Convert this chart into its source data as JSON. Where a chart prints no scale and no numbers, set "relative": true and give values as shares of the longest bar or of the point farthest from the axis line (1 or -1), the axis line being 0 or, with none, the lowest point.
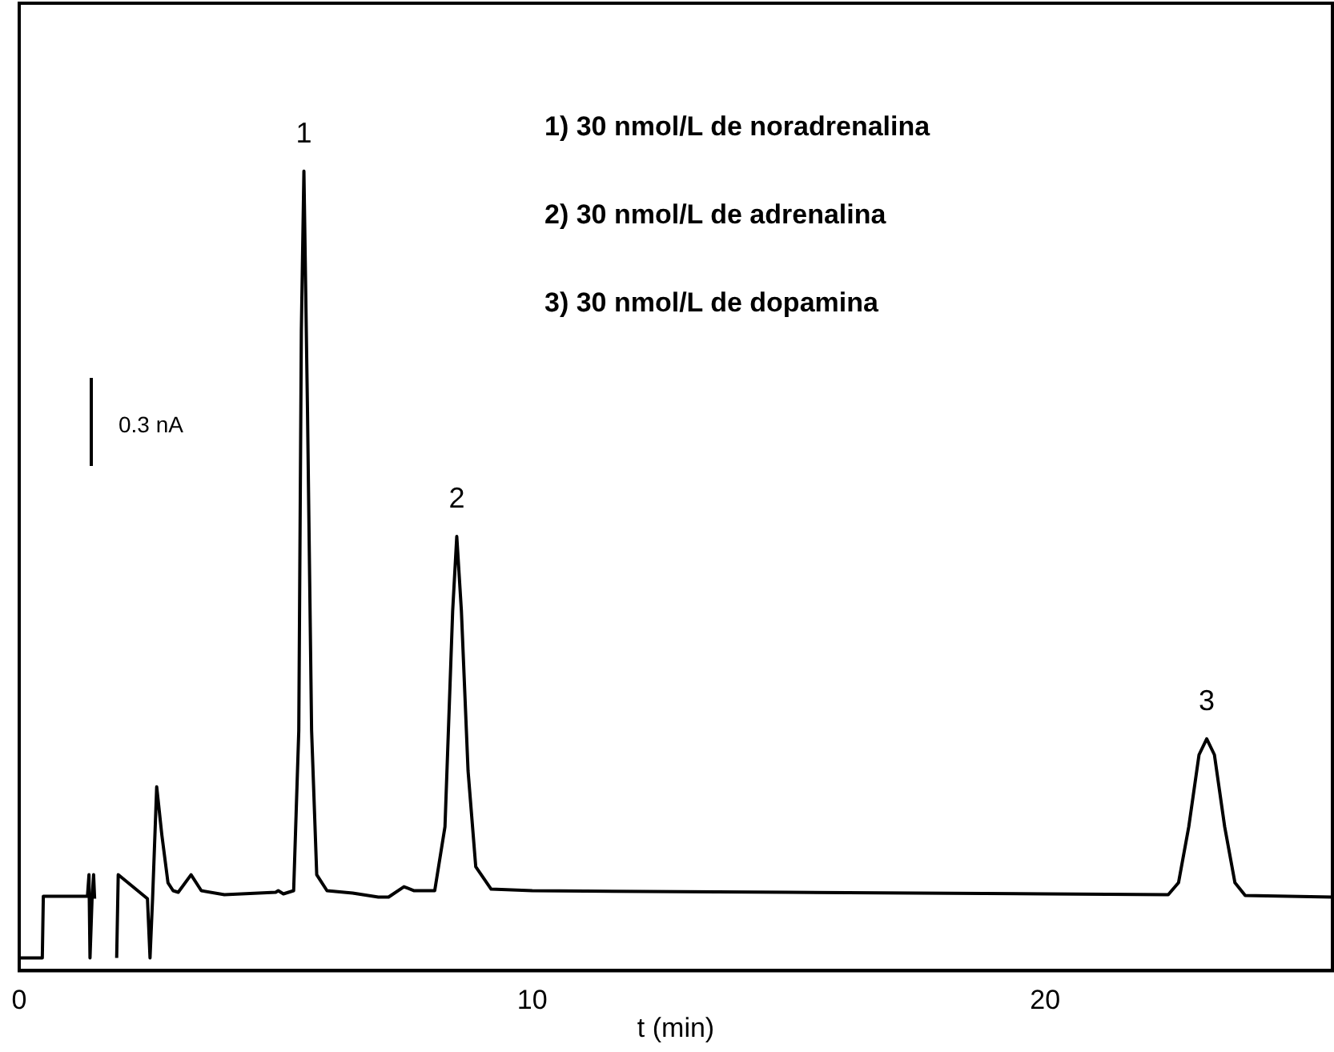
{
  "chart_data": {
    "type": "line",
    "relative": true,
    "xlabel": "t (min)",
    "xlim": [
      0,
      25.6
    ],
    "xticks": [
      0,
      10,
      20
    ],
    "grid": false,
    "legend": false,
    "marker": "none",
    "line_style": "solid",
    "annotations": [
      {
        "text": "1",
        "x": 5.55,
        "y": 1
      },
      {
        "text": "2",
        "x": 8.53,
        "y": 0.543
      },
      {
        "text": "3",
        "x": 23.15,
        "y": 0.29
      },
      "1) 30 nmol/L de noradrenalina",
      "2) 30 nmol/L de adrenalina",
      "3) 30 nmol/L de dopamina",
      "0.3 nA"
    ],
    "series": [
      {
        "color": "#000000",
        "x": [
          0,
          0.45,
          0.47,
          1.33,
          1.36,
          1.38,
          1.42,
          1.45,
          1.47,
          1.6,
          1.9,
          1.93,
          2.5,
          2.55,
          2.6,
          2.68,
          2.78,
          2.9,
          3.0,
          3.1,
          3.35,
          3.55,
          4.0,
          5.0,
          5.05,
          5.15,
          5.35,
          5.45,
          5.5,
          5.55,
          5.62,
          5.7,
          5.8,
          6.0,
          6.5,
          7.0,
          7.2,
          7.5,
          7.7,
          8.1,
          8.3,
          8.45,
          8.53,
          8.62,
          8.75,
          8.9,
          9.2,
          10,
          15,
          20,
          22.4,
          22.6,
          22.8,
          23.0,
          23.15,
          23.3,
          23.5,
          23.7,
          23.9,
          25.6
        ],
        "values": [
          0.016,
          0.016,
          0.093,
          0.093,
          0.12,
          0.016,
          0.09,
          0.12,
          0.09,
          null,
          0.016,
          0.12,
          0.09,
          0.016,
          0.09,
          0.23,
          0.17,
          0.11,
          0.1,
          0.098,
          0.12,
          0.1,
          0.095,
          0.098,
          0.1,
          0.096,
          0.1,
          0.3,
          0.8,
          1,
          0.7,
          0.3,
          0.12,
          0.1,
          0.097,
          0.092,
          0.092,
          0.105,
          0.1,
          0.1,
          0.18,
          0.45,
          0.543,
          0.45,
          0.25,
          0.13,
          0.102,
          0.1,
          0.098,
          0.096,
          0.095,
          0.11,
          0.18,
          0.27,
          0.29,
          0.27,
          0.18,
          0.11,
          0.094,
          0.092
        ]
      }
    ]
  }
}
